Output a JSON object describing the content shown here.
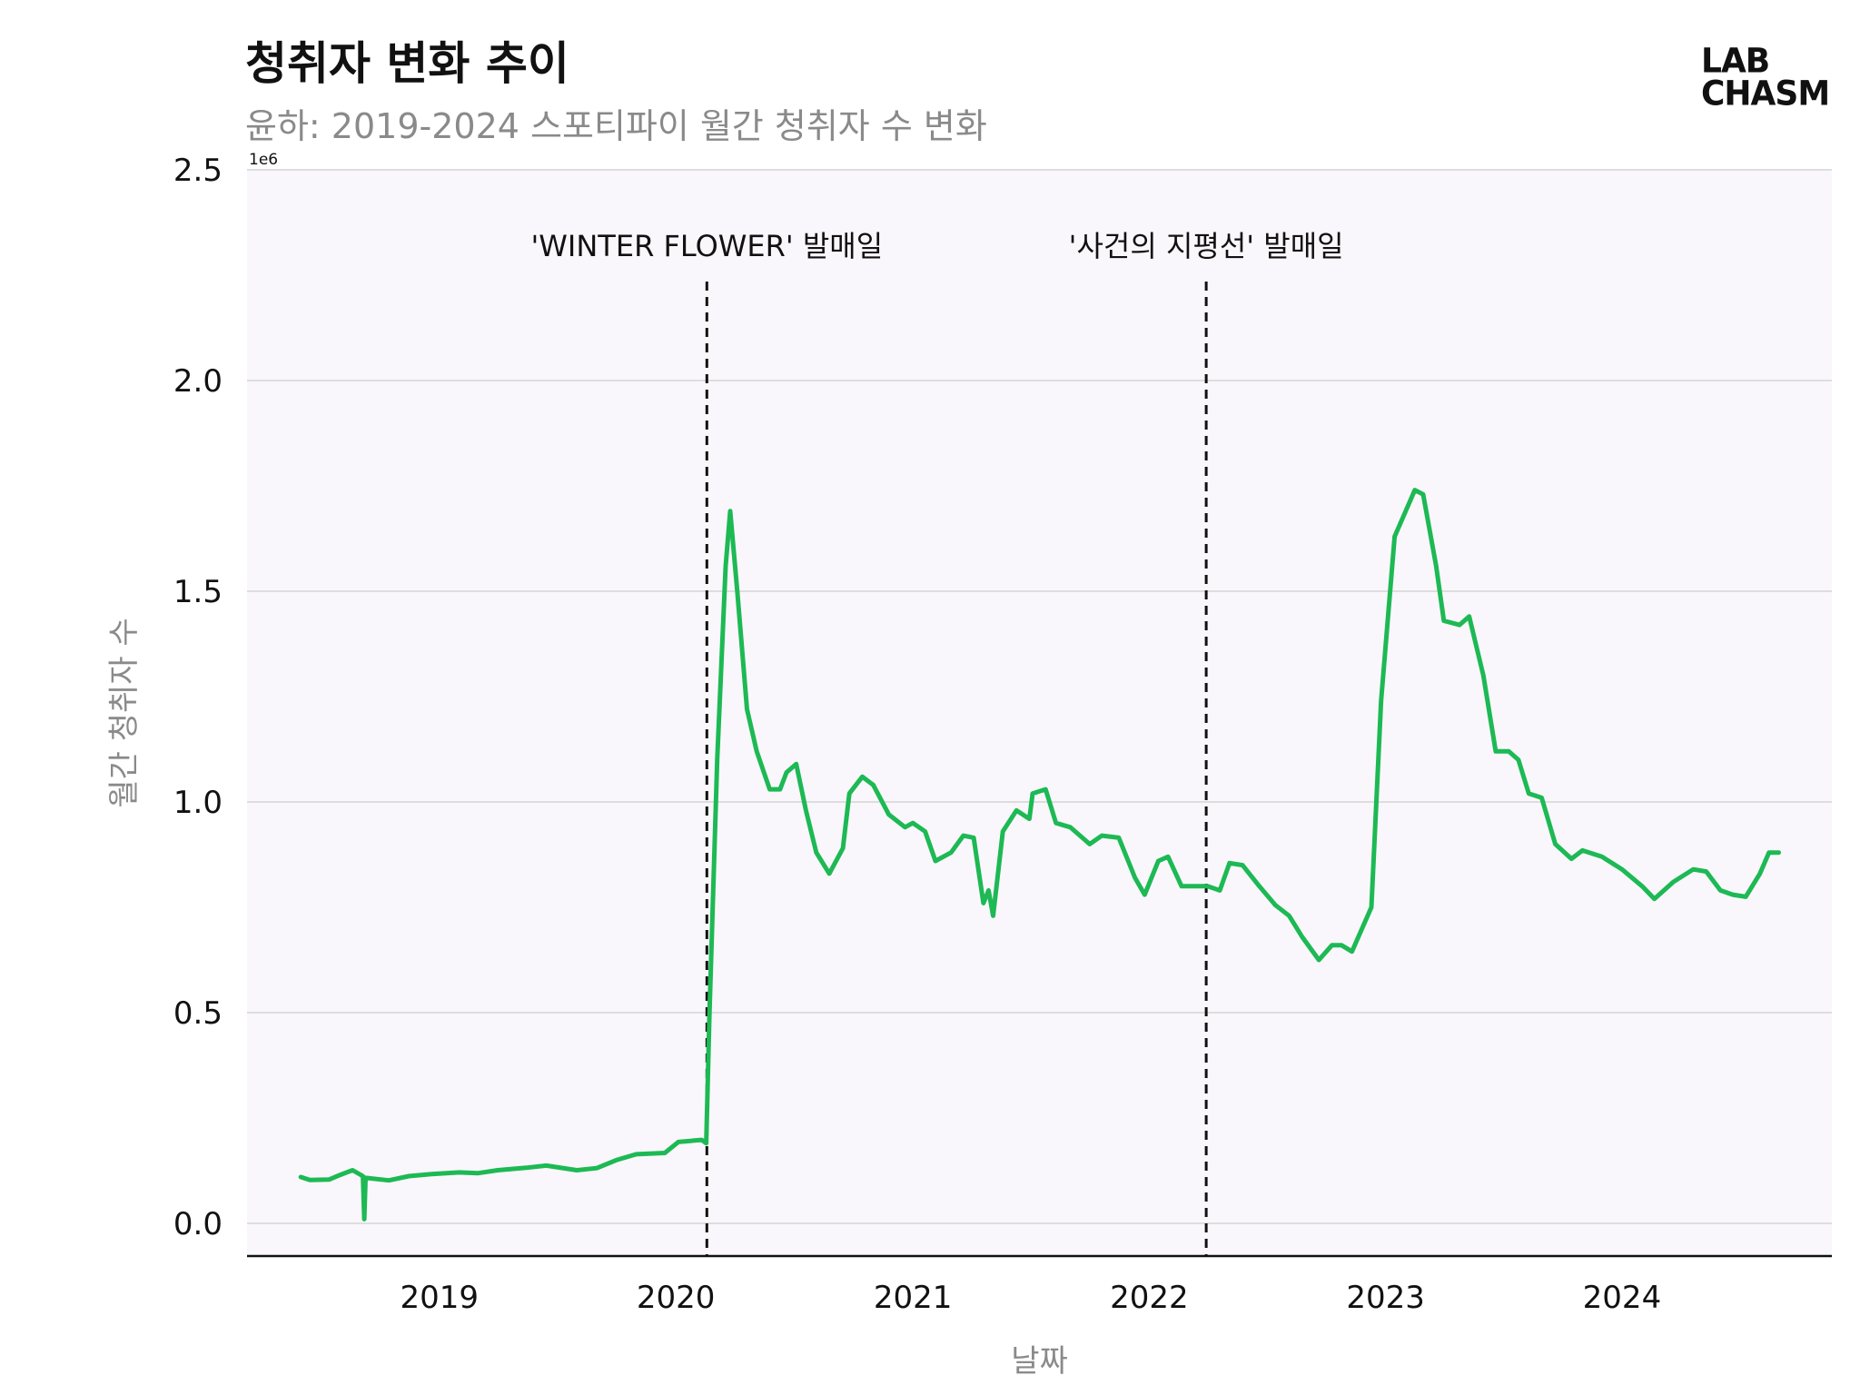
{
  "chart_data": {
    "type": "line",
    "title": "청취자 변화 추이",
    "subtitle": "윤하: 2019-2024 스포티파이 월간 청취자 수 변화",
    "xlabel": "날짜",
    "ylabel": "월간 청취자 수",
    "y_exponent_label": "1e6",
    "ylim": [
      0,
      2500000
    ],
    "yticks": [
      0,
      500000,
      1000000,
      1500000,
      2000000,
      2500000
    ],
    "ytick_labels": [
      "0.0",
      "0.5",
      "1.0",
      "1.5",
      "2.0",
      "2.5"
    ],
    "xlim": [
      "2018-03-10",
      "2024-11-20"
    ],
    "xticks": [
      "2019-01-01",
      "2020-01-01",
      "2021-01-01",
      "2022-01-01",
      "2023-01-01",
      "2024-01-01"
    ],
    "xtick_labels": [
      "2019",
      "2020",
      "2021",
      "2022",
      "2023",
      "2024"
    ],
    "grid": true,
    "line_color": "#1db954",
    "annotations": [
      {
        "x": "2020-02-18",
        "label": "'WINTER FLOWER' 발매일"
      },
      {
        "x": "2022-03-30",
        "label": "'사건의 지평선' 발매일"
      }
    ],
    "series": [
      {
        "points": [
          [
            "2018-06-01",
            110000
          ],
          [
            "2018-06-15",
            103000
          ],
          [
            "2018-07-15",
            104000
          ],
          [
            "2018-08-01",
            115000
          ],
          [
            "2018-08-20",
            126000
          ],
          [
            "2018-09-05",
            112000
          ],
          [
            "2018-09-07",
            10000
          ],
          [
            "2018-09-09",
            108000
          ],
          [
            "2018-10-15",
            102000
          ],
          [
            "2018-11-15",
            112000
          ],
          [
            "2018-12-20",
            117000
          ],
          [
            "2019-02-01",
            121000
          ],
          [
            "2019-03-01",
            119000
          ],
          [
            "2019-04-01",
            126000
          ],
          [
            "2019-05-15",
            132000
          ],
          [
            "2019-06-15",
            137000
          ],
          [
            "2019-08-01",
            126000
          ],
          [
            "2019-09-01",
            131000
          ],
          [
            "2019-10-01",
            150000
          ],
          [
            "2019-11-01",
            164000
          ],
          [
            "2019-12-15",
            167000
          ],
          [
            "2020-01-05",
            193000
          ],
          [
            "2020-02-10",
            198000
          ],
          [
            "2020-02-17",
            190000
          ],
          [
            "2020-02-22",
            500000
          ],
          [
            "2020-03-05",
            1100000
          ],
          [
            "2020-03-18",
            1560000
          ],
          [
            "2020-03-25",
            1690000
          ],
          [
            "2020-04-05",
            1500000
          ],
          [
            "2020-04-20",
            1220000
          ],
          [
            "2020-05-05",
            1120000
          ],
          [
            "2020-05-25",
            1030000
          ],
          [
            "2020-06-10",
            1030000
          ],
          [
            "2020-06-20",
            1070000
          ],
          [
            "2020-07-05",
            1090000
          ],
          [
            "2020-07-20",
            980000
          ],
          [
            "2020-08-05",
            880000
          ],
          [
            "2020-08-25",
            830000
          ],
          [
            "2020-09-15",
            890000
          ],
          [
            "2020-09-25",
            1020000
          ],
          [
            "2020-10-15",
            1060000
          ],
          [
            "2020-11-01",
            1040000
          ],
          [
            "2020-11-25",
            970000
          ],
          [
            "2020-12-20",
            940000
          ],
          [
            "2021-01-01",
            950000
          ],
          [
            "2021-01-20",
            930000
          ],
          [
            "2021-02-05",
            860000
          ],
          [
            "2021-03-01",
            880000
          ],
          [
            "2021-03-20",
            920000
          ],
          [
            "2021-04-05",
            915000
          ],
          [
            "2021-04-20",
            760000
          ],
          [
            "2021-04-28",
            790000
          ],
          [
            "2021-05-05",
            730000
          ],
          [
            "2021-05-20",
            930000
          ],
          [
            "2021-06-10",
            980000
          ],
          [
            "2021-06-30",
            960000
          ],
          [
            "2021-07-05",
            1020000
          ],
          [
            "2021-07-25",
            1030000
          ],
          [
            "2021-08-10",
            950000
          ],
          [
            "2021-09-01",
            940000
          ],
          [
            "2021-10-01",
            900000
          ],
          [
            "2021-10-20",
            920000
          ],
          [
            "2021-11-15",
            915000
          ],
          [
            "2021-12-10",
            820000
          ],
          [
            "2021-12-25",
            780000
          ],
          [
            "2022-01-15",
            860000
          ],
          [
            "2022-01-30",
            870000
          ],
          [
            "2022-02-20",
            800000
          ],
          [
            "2022-03-15",
            800000
          ],
          [
            "2022-04-01",
            800000
          ],
          [
            "2022-04-20",
            790000
          ],
          [
            "2022-05-05",
            855000
          ],
          [
            "2022-05-25",
            850000
          ],
          [
            "2022-06-20",
            800000
          ],
          [
            "2022-07-15",
            755000
          ],
          [
            "2022-08-05",
            730000
          ],
          [
            "2022-08-25",
            680000
          ],
          [
            "2022-09-20",
            625000
          ],
          [
            "2022-10-10",
            660000
          ],
          [
            "2022-10-25",
            660000
          ],
          [
            "2022-11-10",
            645000
          ],
          [
            "2022-12-10",
            750000
          ],
          [
            "2022-12-25",
            1240000
          ],
          [
            "2023-01-15",
            1630000
          ],
          [
            "2023-02-01",
            1690000
          ],
          [
            "2023-02-15",
            1740000
          ],
          [
            "2023-02-28",
            1730000
          ],
          [
            "2023-03-20",
            1560000
          ],
          [
            "2023-04-01",
            1430000
          ],
          [
            "2023-04-25",
            1420000
          ],
          [
            "2023-05-10",
            1440000
          ],
          [
            "2023-06-01",
            1300000
          ],
          [
            "2023-06-20",
            1120000
          ],
          [
            "2023-07-10",
            1120000
          ],
          [
            "2023-07-25",
            1100000
          ],
          [
            "2023-08-10",
            1020000
          ],
          [
            "2023-08-30",
            1010000
          ],
          [
            "2023-09-20",
            900000
          ],
          [
            "2023-10-15",
            865000
          ],
          [
            "2023-11-01",
            885000
          ],
          [
            "2023-12-01",
            870000
          ],
          [
            "2024-01-01",
            840000
          ],
          [
            "2024-02-01",
            800000
          ],
          [
            "2024-02-20",
            770000
          ],
          [
            "2024-03-20",
            810000
          ],
          [
            "2024-04-20",
            840000
          ],
          [
            "2024-05-10",
            835000
          ],
          [
            "2024-06-01",
            790000
          ],
          [
            "2024-06-20",
            780000
          ],
          [
            "2024-07-10",
            775000
          ],
          [
            "2024-08-01",
            830000
          ],
          [
            "2024-08-15",
            880000
          ],
          [
            "2024-08-30",
            880000
          ]
        ]
      }
    ]
  },
  "logo": {
    "line1": "LAB",
    "line2": "CHASM"
  }
}
